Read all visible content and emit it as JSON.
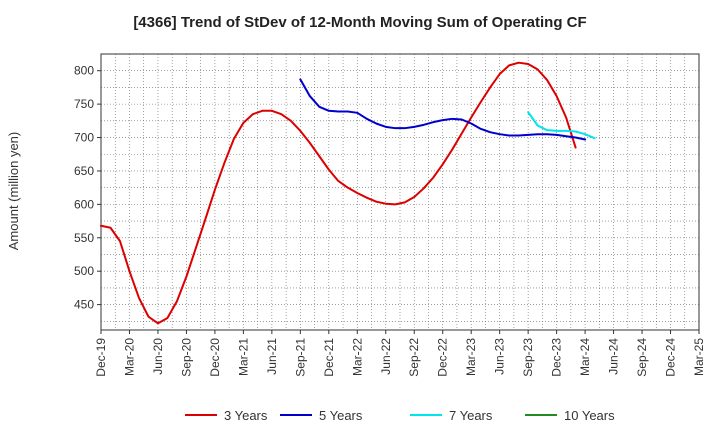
{
  "chart_data": {
    "type": "line",
    "title": "[4366]  Trend of StDev of 12-Month Moving Sum of Operating CF",
    "xlabel": "",
    "ylabel": "Amount (million yen)",
    "ylim": [
      412,
      825
    ],
    "yticks": [
      450,
      500,
      550,
      600,
      650,
      700,
      750,
      800
    ],
    "x_ticks": [
      "Dec-19",
      "Mar-20",
      "Jun-20",
      "Sep-20",
      "Dec-20",
      "Mar-21",
      "Jun-21",
      "Sep-21",
      "Dec-21",
      "Mar-22",
      "Jun-22",
      "Sep-22",
      "Dec-22",
      "Mar-23",
      "Jun-23",
      "Sep-23",
      "Dec-23",
      "Mar-24",
      "Jun-24",
      "Sep-24",
      "Dec-24",
      "Mar-25"
    ],
    "grid": true,
    "legend_position": "bottom",
    "series": [
      {
        "name": "3 Years",
        "color": "#dd0000",
        "start_month": 0,
        "values": [
          568,
          565,
          545,
          500,
          460,
          432,
          422,
          430,
          455,
          492,
          535,
          578,
          622,
          662,
          698,
          722,
          735,
          740,
          740,
          735,
          725,
          710,
          692,
          672,
          652,
          635,
          625,
          617,
          610,
          604,
          601,
          600,
          603,
          611,
          624,
          640,
          660,
          682,
          706,
          730,
          753,
          775,
          795,
          808,
          812,
          810,
          802,
          786,
          762,
          730,
          685
        ]
      },
      {
        "name": "5 Years",
        "color": "#0000cc",
        "start_month": 21,
        "values": [
          787,
          762,
          746,
          740,
          739,
          739,
          737,
          728,
          721,
          716,
          714,
          714,
          716,
          719,
          723,
          726,
          728,
          727,
          721,
          713,
          708,
          705,
          703,
          703,
          704,
          705,
          705,
          704,
          702,
          700,
          697
        ]
      },
      {
        "name": "7 Years",
        "color": "#00e5ee",
        "start_month": 45,
        "values": [
          738,
          718,
          711,
          710,
          710,
          709,
          705,
          699
        ]
      },
      {
        "name": "10 Years",
        "color": "#228b22",
        "start_month": 0,
        "values": []
      }
    ]
  }
}
